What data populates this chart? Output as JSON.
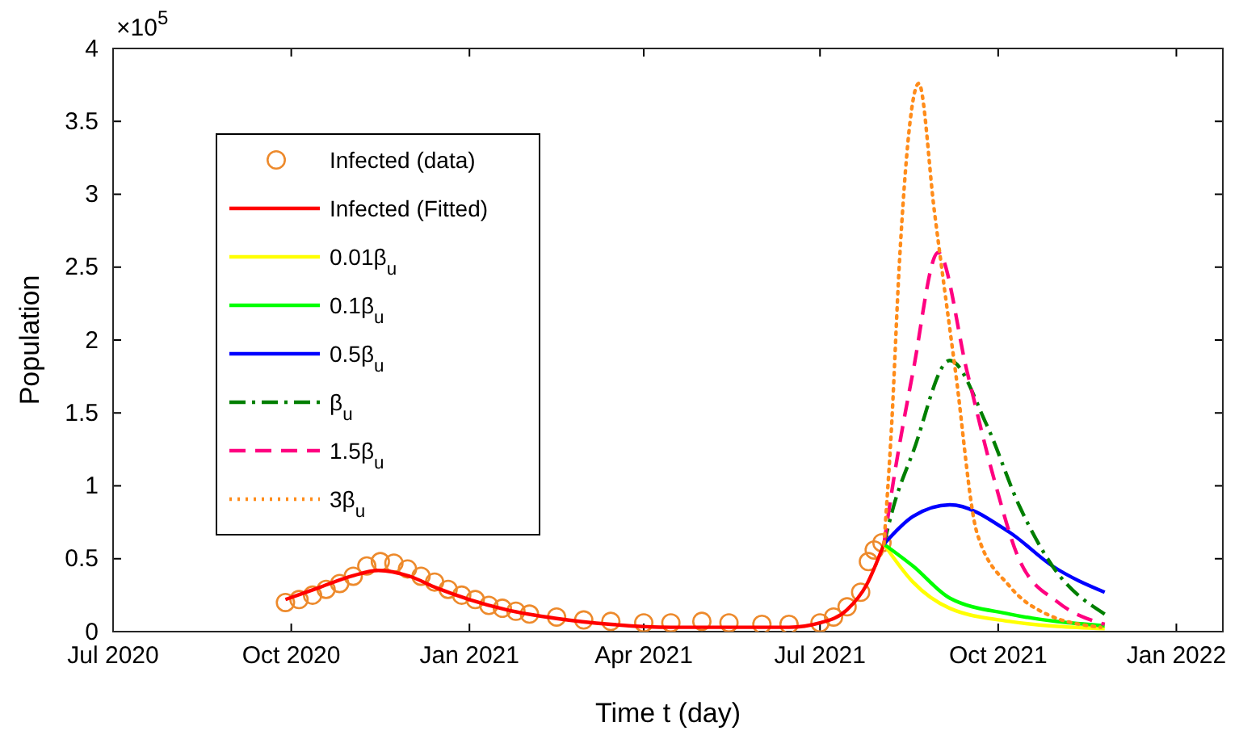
{
  "chart_data": {
    "type": "line",
    "xlabel": "Time t (day)",
    "ylabel": "Population",
    "annotations": [
      "×10$^{5}$"
    ],
    "xlim": [
      "2020-07-01",
      "2022-01-25"
    ],
    "xticks": [
      {
        "value": "2020-07-01",
        "label": "Jul 2020"
      },
      {
        "value": "2020-10-01",
        "label": "Oct 2020"
      },
      {
        "value": "2021-01-01",
        "label": "Jan 2021"
      },
      {
        "value": "2021-04-01",
        "label": "Apr 2021"
      },
      {
        "value": "2021-07-01",
        "label": "Jul 2021"
      },
      {
        "value": "2021-10-01",
        "label": "Oct 2021"
      },
      {
        "value": "2022-01-01",
        "label": "Jan 2022"
      }
    ],
    "ylim": [
      0,
      4
    ],
    "yticks": [
      0,
      0.5,
      1,
      1.5,
      2,
      2.5,
      3,
      3.5,
      4
    ],
    "grid": false,
    "legend": "top left",
    "series": [
      {
        "name": "Infected (data)",
        "type": "scatter",
        "marker": "circle",
        "color": "#ed8a2c",
        "x": [
          "2020-09-28",
          "2020-10-05",
          "2020-10-12",
          "2020-10-19",
          "2020-10-26",
          "2020-11-02",
          "2020-11-09",
          "2020-11-16",
          "2020-11-23",
          "2020-11-30",
          "2020-12-07",
          "2020-12-14",
          "2020-12-21",
          "2020-12-28",
          "2021-01-04",
          "2021-01-11",
          "2021-01-18",
          "2021-01-25",
          "2021-02-01",
          "2021-02-15",
          "2021-03-01",
          "2021-03-15",
          "2021-04-01",
          "2021-04-15",
          "2021-05-01",
          "2021-05-15",
          "2021-06-01",
          "2021-06-15",
          "2021-07-01",
          "2021-07-08",
          "2021-07-15",
          "2021-07-22",
          "2021-07-26",
          "2021-07-29",
          "2021-08-02"
        ],
        "values": [
          0.2,
          0.22,
          0.25,
          0.29,
          0.33,
          0.38,
          0.45,
          0.48,
          0.47,
          0.43,
          0.38,
          0.34,
          0.29,
          0.25,
          0.22,
          0.18,
          0.16,
          0.14,
          0.12,
          0.1,
          0.08,
          0.07,
          0.06,
          0.06,
          0.07,
          0.06,
          0.05,
          0.05,
          0.06,
          0.1,
          0.17,
          0.27,
          0.48,
          0.56,
          0.61
        ]
      },
      {
        "name": "Infected (Fitted)",
        "color": "#ff0000",
        "line_style": "solid",
        "x": [
          "2020-09-28",
          "2020-10-15",
          "2020-11-01",
          "2020-11-15",
          "2020-12-01",
          "2020-12-15",
          "2021-01-01",
          "2021-01-20",
          "2021-02-15",
          "2021-03-15",
          "2021-04-15",
          "2021-05-15",
          "2021-06-15",
          "2021-07-01",
          "2021-07-15",
          "2021-07-25",
          "2021-08-03"
        ],
        "values": [
          0.22,
          0.3,
          0.38,
          0.42,
          0.38,
          0.3,
          0.22,
          0.15,
          0.09,
          0.05,
          0.03,
          0.03,
          0.03,
          0.06,
          0.15,
          0.32,
          0.6
        ]
      },
      {
        "name": "0.01β$_{u}$",
        "color": "#ffff00",
        "line_style": "solid",
        "x": [
          "2021-08-03",
          "2021-08-18",
          "2021-09-06",
          "2021-10-07",
          "2021-11-25"
        ],
        "values": [
          0.6,
          0.34,
          0.16,
          0.07,
          0.02
        ]
      },
      {
        "name": "0.1β$_{u}$",
        "color": "#00ff00",
        "line_style": "solid",
        "x": [
          "2021-08-03",
          "2021-08-18",
          "2021-09-06",
          "2021-10-07",
          "2021-11-25"
        ],
        "values": [
          0.6,
          0.45,
          0.23,
          0.12,
          0.04
        ]
      },
      {
        "name": "0.5β$_{u}$",
        "color": "#0000ff",
        "line_style": "solid",
        "x": [
          "2021-08-03",
          "2021-08-18",
          "2021-09-06",
          "2021-10-07",
          "2021-10-29",
          "2021-11-25"
        ],
        "values": [
          0.6,
          0.79,
          0.87,
          0.68,
          0.45,
          0.27
        ]
      },
      {
        "name": "β$_{u}$",
        "color": "#007f00",
        "line_style": "dashdot",
        "x": [
          "2021-08-03",
          "2021-08-08",
          "2021-08-18",
          "2021-09-06",
          "2021-09-25",
          "2021-10-12",
          "2021-10-29",
          "2021-11-25"
        ],
        "values": [
          0.6,
          0.86,
          1.23,
          1.86,
          1.42,
          0.86,
          0.45,
          0.12
        ]
      },
      {
        "name": "1.5β$_{u}$",
        "color": "#ff0080",
        "line_style": "dashed",
        "x": [
          "2021-08-03",
          "2021-08-08",
          "2021-08-18",
          "2021-08-31",
          "2021-09-15",
          "2021-09-29",
          "2021-10-12",
          "2021-11-01",
          "2021-11-25"
        ],
        "values": [
          0.6,
          1.04,
          1.78,
          2.6,
          1.78,
          1.04,
          0.49,
          0.2,
          0.05
        ]
      },
      {
        "name": "3β$_{u}$",
        "color": "#ff8c1a",
        "line_style": "dotted",
        "x": [
          "2021-08-03",
          "2021-08-07",
          "2021-08-11",
          "2021-08-21",
          "2021-08-29",
          "2021-09-09",
          "2021-09-20",
          "2021-10-07",
          "2021-10-26",
          "2021-11-23"
        ],
        "values": [
          0.6,
          1.42,
          2.53,
          3.76,
          2.89,
          1.78,
          0.68,
          0.31,
          0.12,
          0.03
        ]
      }
    ]
  }
}
